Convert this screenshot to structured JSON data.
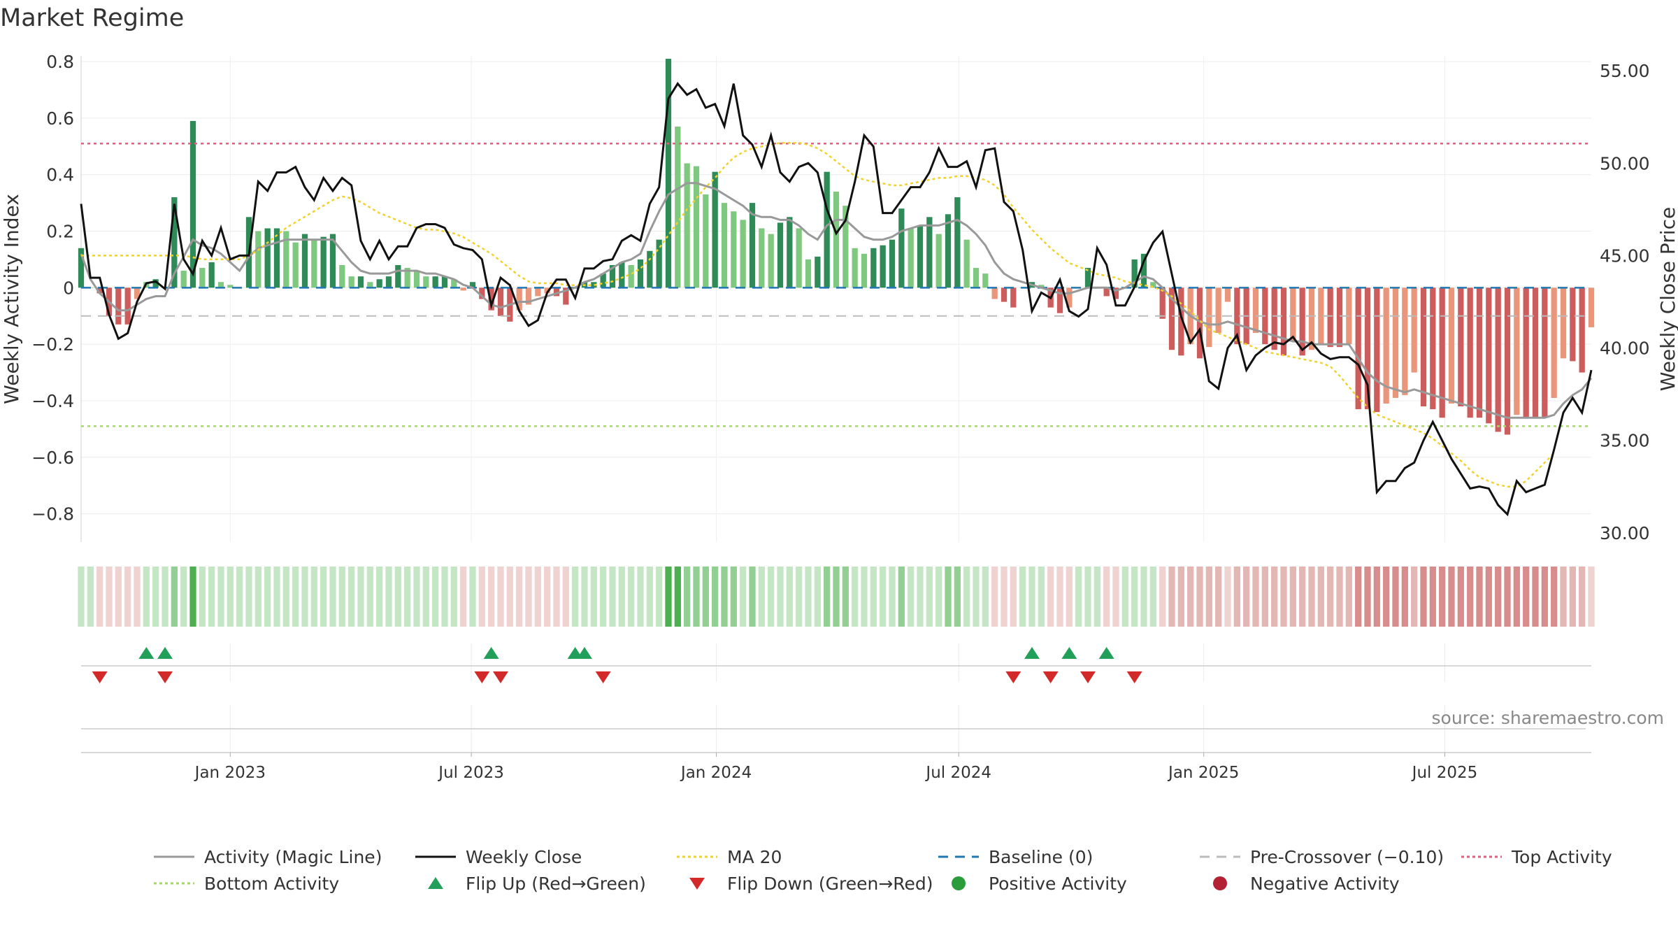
{
  "page": {
    "title": "Market Regime",
    "source": "source: sharemaestro.com"
  },
  "colors": {
    "pos_dark": "#2e8b57",
    "pos_light": "#7fc87f",
    "neg_dark": "#cd5c5c",
    "neg_light": "#e9967a",
    "close": "#111111",
    "magic": "#999999",
    "ma20": "#f0d22e",
    "baseline": "#1f77b4",
    "precross": "#bbbbbb",
    "top": "#e0607e",
    "bottom": "#a8d86a",
    "flip_up": "#22a05a",
    "flip_down": "#d22a2a",
    "pos_marker": "#2a9d3a",
    "neg_marker": "#b22234"
  },
  "chart_data": {
    "type": "bar",
    "title": "Market Regime",
    "x_start": "2022-09-11",
    "x_step_days": 7,
    "x_ticks": [
      {
        "date": "2023-01-01",
        "label": "Jan 2023"
      },
      {
        "date": "2023-07-01",
        "label": "Jul 2023"
      },
      {
        "date": "2024-01-01",
        "label": "Jan 2024"
      },
      {
        "date": "2024-07-01",
        "label": "Jul 2024"
      },
      {
        "date": "2025-01-01",
        "label": "Jan 2025"
      },
      {
        "date": "2025-07-01",
        "label": "Jul 2025"
      }
    ],
    "y_left": {
      "label": "Weekly Activity Index",
      "range": [
        -0.9,
        0.82
      ],
      "ticks": [
        {
          "v": 0.8,
          "t": "0.8"
        },
        {
          "v": 0.6,
          "t": "0.6"
        },
        {
          "v": 0.4,
          "t": "0.4"
        },
        {
          "v": 0.2,
          "t": "0.2"
        },
        {
          "v": 0,
          "t": "0"
        },
        {
          "v": -0.2,
          "t": "−0.2"
        },
        {
          "v": -0.4,
          "t": "−0.4"
        },
        {
          "v": -0.6,
          "t": "−0.6"
        },
        {
          "v": -0.8,
          "t": "−0.8"
        }
      ]
    },
    "y_right": {
      "label": "Weekly Close Price",
      "range": [
        29.5,
        55.8
      ],
      "ticks": [
        {
          "v": 55,
          "t": "55.00"
        },
        {
          "v": 50,
          "t": "50.00"
        },
        {
          "v": 45,
          "t": "45.00"
        },
        {
          "v": 40,
          "t": "40.00"
        },
        {
          "v": 35,
          "t": "35.00"
        },
        {
          "v": 30,
          "t": "30.00"
        }
      ]
    },
    "levels": {
      "top": 0.51,
      "bottom": -0.49,
      "baseline": 0,
      "pre_crossover": -0.1
    },
    "activity": [
      0.14,
      0.0,
      -0.02,
      -0.1,
      -0.13,
      -0.13,
      -0.04,
      0.02,
      0.03,
      0.0,
      0.32,
      0.06,
      0.59,
      0.07,
      0.09,
      0.02,
      0.01,
      0.0,
      0.25,
      0.2,
      0.21,
      0.21,
      0.2,
      0.16,
      0.19,
      0.17,
      0.18,
      0.19,
      0.08,
      0.04,
      0.04,
      0.02,
      0.03,
      0.04,
      0.08,
      0.07,
      0.06,
      0.04,
      0.04,
      0.04,
      0.03,
      -0.01,
      0.02,
      -0.04,
      -0.08,
      -0.1,
      -0.12,
      -0.08,
      -0.06,
      -0.03,
      -0.02,
      -0.03,
      -0.06,
      0.0,
      0.02,
      0.02,
      0.05,
      0.08,
      0.09,
      0.08,
      0.1,
      0.13,
      0.17,
      0.81,
      0.57,
      0.44,
      0.43,
      0.33,
      0.41,
      0.3,
      0.27,
      0.24,
      0.3,
      0.21,
      0.19,
      0.23,
      0.25,
      0.21,
      0.1,
      0.11,
      0.41,
      0.34,
      0.29,
      0.14,
      0.12,
      0.14,
      0.15,
      0.17,
      0.28,
      0.21,
      0.22,
      0.25,
      0.19,
      0.26,
      0.32,
      0.17,
      0.07,
      0.05,
      -0.04,
      -0.05,
      -0.07,
      0.0,
      0.02,
      0.01,
      -0.07,
      -0.09,
      -0.07,
      0.0,
      0.07,
      0.0,
      -0.03,
      -0.04,
      0.0,
      0.1,
      0.12,
      0.02,
      -0.11,
      -0.22,
      -0.24,
      -0.2,
      -0.25,
      -0.21,
      -0.16,
      -0.05,
      -0.2,
      -0.2,
      -0.16,
      -0.2,
      -0.22,
      -0.24,
      -0.19,
      -0.24,
      -0.22,
      -0.2,
      -0.21,
      -0.21,
      -0.2,
      -0.43,
      -0.43,
      -0.44,
      -0.41,
      -0.39,
      -0.38,
      -0.3,
      -0.42,
      -0.43,
      -0.46,
      -0.41,
      -0.42,
      -0.46,
      -0.46,
      -0.48,
      -0.51,
      -0.52,
      -0.45,
      -0.46,
      -0.46,
      -0.46,
      -0.39,
      -0.25,
      -0.26,
      -0.3,
      -0.14
    ],
    "magic_line": [
      0.12,
      0.03,
      -0.02,
      -0.05,
      -0.08,
      -0.08,
      -0.06,
      -0.04,
      -0.03,
      -0.03,
      0.05,
      0.11,
      0.17,
      0.15,
      0.14,
      0.12,
      0.09,
      0.06,
      0.11,
      0.14,
      0.15,
      0.16,
      0.17,
      0.17,
      0.17,
      0.17,
      0.17,
      0.17,
      0.13,
      0.09,
      0.06,
      0.05,
      0.05,
      0.05,
      0.06,
      0.06,
      0.06,
      0.05,
      0.05,
      0.04,
      0.03,
      0.01,
      0.0,
      -0.03,
      -0.06,
      -0.07,
      -0.06,
      -0.05,
      -0.05,
      -0.04,
      -0.03,
      -0.02,
      -0.01,
      0.0,
      0.02,
      0.03,
      0.05,
      0.07,
      0.09,
      0.1,
      0.12,
      0.2,
      0.27,
      0.33,
      0.35,
      0.37,
      0.37,
      0.36,
      0.35,
      0.33,
      0.31,
      0.29,
      0.26,
      0.25,
      0.25,
      0.24,
      0.24,
      0.22,
      0.19,
      0.17,
      0.22,
      0.24,
      0.24,
      0.21,
      0.18,
      0.17,
      0.17,
      0.18,
      0.2,
      0.21,
      0.22,
      0.22,
      0.22,
      0.23,
      0.24,
      0.22,
      0.19,
      0.15,
      0.09,
      0.05,
      0.03,
      0.02,
      0.01,
      0.0,
      -0.01,
      -0.02,
      -0.02,
      -0.01,
      0.0,
      0.0,
      0.0,
      -0.01,
      0.0,
      0.02,
      0.04,
      0.03,
      0.0,
      -0.04,
      -0.07,
      -0.1,
      -0.12,
      -0.13,
      -0.13,
      -0.12,
      -0.13,
      -0.14,
      -0.15,
      -0.16,
      -0.17,
      -0.18,
      -0.19,
      -0.19,
      -0.2,
      -0.2,
      -0.2,
      -0.2,
      -0.2,
      -0.25,
      -0.3,
      -0.33,
      -0.35,
      -0.36,
      -0.37,
      -0.36,
      -0.37,
      -0.38,
      -0.39,
      -0.4,
      -0.41,
      -0.42,
      -0.43,
      -0.44,
      -0.45,
      -0.46,
      -0.46,
      -0.46,
      -0.46,
      -0.46,
      -0.45,
      -0.41,
      -0.38,
      -0.36,
      -0.32
    ],
    "weekly_close": [
      47.8,
      43.8,
      43.8,
      41.8,
      40.5,
      40.8,
      42.5,
      43.5,
      43.6,
      43.2,
      47.8,
      44.8,
      44.0,
      45.8,
      45.0,
      46.5,
      44.8,
      45.0,
      45.0,
      49.0,
      48.5,
      49.5,
      49.5,
      49.8,
      48.7,
      48.0,
      49.2,
      48.5,
      49.2,
      48.8,
      45.8,
      44.8,
      45.8,
      44.8,
      45.5,
      45.5,
      46.5,
      46.7,
      46.7,
      46.5,
      45.6,
      45.4,
      45.3,
      44.8,
      42.3,
      43.8,
      43.4,
      42.0,
      41.2,
      41.5,
      43.0,
      43.7,
      43.7,
      42.7,
      44.3,
      44.3,
      44.7,
      44.8,
      45.8,
      46.1,
      45.8,
      47.8,
      48.7,
      53.5,
      54.3,
      53.7,
      54.0,
      53.0,
      53.2,
      52.0,
      54.3,
      51.5,
      51.0,
      49.8,
      51.5,
      49.5,
      49.0,
      49.8,
      50.0,
      49.5,
      47.5,
      46.2,
      46.9,
      49.0,
      51.5,
      50.9,
      47.3,
      47.3,
      48.0,
      48.7,
      48.7,
      49.5,
      50.8,
      49.8,
      49.8,
      50.1,
      48.7,
      50.7,
      50.8,
      47.9,
      47.4,
      45.3,
      42.0,
      43.0,
      42.7,
      43.7,
      42.0,
      41.7,
      42.1,
      45.4,
      44.5,
      42.3,
      42.3,
      43.3,
      44.7,
      45.7,
      46.3,
      44.0,
      41.7,
      40.3,
      41.0,
      38.2,
      37.8,
      40.0,
      40.7,
      38.8,
      39.6,
      40.0,
      40.3,
      40.2,
      40.6,
      39.9,
      40.3,
      39.7,
      39.4,
      39.5,
      39.5,
      39.1,
      38.0,
      32.2,
      32.8,
      32.8,
      33.5,
      33.8,
      35.0,
      36.0,
      35.0,
      34.0,
      33.2,
      32.4,
      32.5,
      32.4,
      31.5,
      31.0,
      32.8,
      32.2,
      32.4,
      32.6,
      34.5,
      36.5,
      37.3,
      36.5,
      38.8
    ],
    "ma20": [
      45.0,
      45.0,
      45.0,
      45.0,
      45.0,
      45.0,
      45.0,
      45.0,
      45.0,
      45.0,
      45.0,
      45.0,
      44.9,
      44.8,
      44.8,
      44.8,
      44.8,
      44.8,
      45.0,
      45.3,
      45.7,
      46.1,
      46.5,
      46.8,
      47.1,
      47.4,
      47.7,
      48.0,
      48.2,
      48.1,
      47.9,
      47.6,
      47.3,
      47.1,
      46.9,
      46.7,
      46.5,
      46.4,
      46.4,
      46.3,
      46.2,
      46.0,
      45.7,
      45.4,
      45.1,
      44.7,
      44.3,
      43.9,
      43.6,
      43.5,
      43.5,
      43.5,
      43.4,
      43.4,
      43.4,
      43.4,
      43.5,
      43.6,
      43.8,
      44.0,
      44.3,
      44.8,
      45.4,
      46.1,
      46.8,
      47.5,
      48.1,
      48.7,
      49.2,
      49.8,
      50.3,
      50.6,
      50.8,
      50.9,
      51.0,
      51.1,
      51.1,
      51.1,
      51.0,
      50.8,
      50.5,
      50.1,
      49.7,
      49.3,
      49.1,
      49.0,
      48.9,
      48.8,
      48.8,
      48.9,
      49.0,
      49.1,
      49.2,
      49.2,
      49.3,
      49.3,
      49.2,
      49.1,
      48.8,
      48.3,
      47.6,
      47.0,
      46.4,
      45.9,
      45.4,
      45.0,
      44.6,
      44.4,
      44.2,
      44.0,
      43.9,
      43.8,
      43.6,
      43.5,
      43.4,
      43.3,
      43.1,
      42.8,
      42.4,
      42.0,
      41.5,
      41.0,
      40.8,
      40.6,
      40.4,
      40.2,
      40.0,
      39.8,
      39.7,
      39.6,
      39.5,
      39.4,
      39.3,
      39.2,
      39.0,
      38.5,
      37.9,
      37.3,
      36.8,
      36.4,
      36.2,
      36.0,
      35.8,
      35.6,
      35.4,
      35.1,
      34.7,
      34.3,
      33.9,
      33.4,
      33.0,
      32.8,
      32.6,
      32.5,
      32.5,
      32.8,
      33.3,
      33.8,
      34.3
    ],
    "flips_up": [
      19,
      21,
      111,
      127,
      128,
      252,
      256,
      260
    ],
    "flips_down": [
      6,
      13,
      110,
      112,
      131,
      246,
      250,
      254,
      263
    ],
    "flip_up_dates": [
      "2022-10-30",
      "2022-11-13",
      "2023-07-16",
      "2023-09-17",
      "2023-09-24",
      "2024-08-25",
      "2024-09-22",
      "2024-10-20"
    ],
    "flip_down_dates": [
      "2022-09-25",
      "2022-11-13",
      "2023-07-09",
      "2023-07-23",
      "2023-10-08",
      "2024-08-11",
      "2024-09-08",
      "2024-10-06",
      "2024-11-10"
    ],
    "legend": [
      {
        "label": "Activity (Magic Line)",
        "kind": "line",
        "color": "#999999"
      },
      {
        "label": "Weekly Close",
        "kind": "line",
        "color": "#111111"
      },
      {
        "label": "MA 20",
        "kind": "dotted",
        "color": "#f0d22e"
      },
      {
        "label": "Baseline (0)",
        "kind": "dashed",
        "color": "#1f77b4"
      },
      {
        "label": "Pre-Crossover (−0.10)",
        "kind": "dashed",
        "color": "#bbbbbb"
      },
      {
        "label": "Top Activity",
        "kind": "dotted",
        "color": "#e0607e"
      },
      {
        "label": "Bottom Activity",
        "kind": "dotted",
        "color": "#a8d86a"
      },
      {
        "label": "Flip Up (Red→Green)",
        "kind": "triangle-up",
        "color": "#22a05a"
      },
      {
        "label": "Flip Down (Green→Red)",
        "kind": "triangle-down",
        "color": "#d22a2a"
      },
      {
        "label": "Positive Activity",
        "kind": "dot",
        "color": "#2a9d3a"
      },
      {
        "label": "Negative Activity",
        "kind": "dot",
        "color": "#b22234"
      }
    ]
  }
}
